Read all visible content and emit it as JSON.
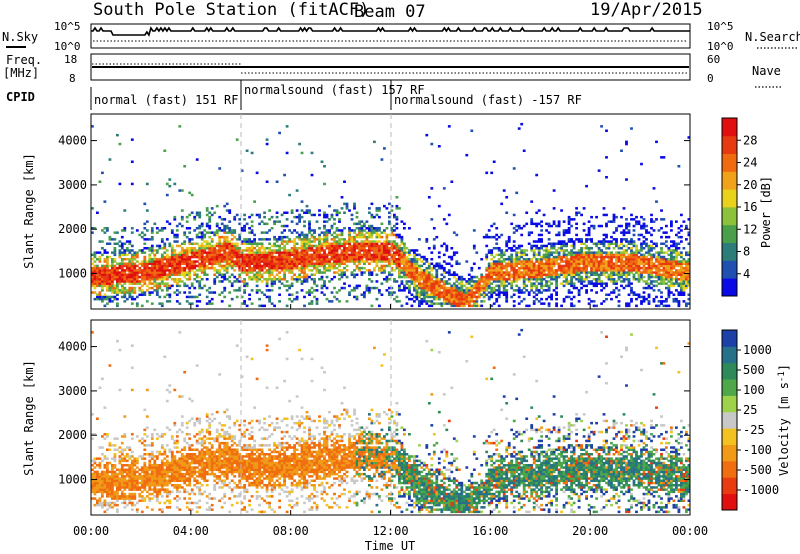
{
  "header": {
    "station": "South Pole Station (fitACF)",
    "beam": "Beam 07",
    "date": "19/Apr/2015"
  },
  "top_panels": {
    "nsky_label": "N.Sky",
    "nsky_left_ticks": [
      "10^5",
      "10^0"
    ],
    "nsearch_label": "N.Search",
    "nsearch_right_ticks": [
      "10^5",
      "10^0"
    ],
    "freq_label_line1": "Freq.",
    "freq_label_line2": "[MHz]",
    "freq_ticks": [
      "18",
      "8"
    ],
    "nave_label": "Nave",
    "nave_ticks": [
      "60",
      "0"
    ],
    "cpid_label": "CPID",
    "cpid_segments": [
      {
        "text": "normal (fast) 151 RF",
        "start_hour": 0,
        "end_hour": 6
      },
      {
        "text": "normalsound (fast) 157 RF",
        "start_hour": 6,
        "end_hour": 12
      },
      {
        "text": "normalsound (fast) -157 RF",
        "start_hour": 12,
        "end_hour": 24
      }
    ]
  },
  "x_axis": {
    "label": "Time UT",
    "ticks": [
      "00:00",
      "04:00",
      "08:00",
      "12:00",
      "16:00",
      "20:00",
      "00:00"
    ]
  },
  "power_colorbar": {
    "label": "Power [dB]",
    "ticks": [
      "28",
      "24",
      "20",
      "16",
      "12",
      "8",
      "4"
    ],
    "colors": [
      "#0a0ae6",
      "#1f4fb0",
      "#2c7d7a",
      "#4aa04a",
      "#8cc23a",
      "#e8d21c",
      "#f0a21a",
      "#f06a10",
      "#e83a10",
      "#e01010"
    ]
  },
  "velocity_colorbar": {
    "label": "Velocity [m s^-1]",
    "ticks": [
      "1000",
      "500",
      "100",
      "25",
      "-25",
      "-100",
      "-500",
      "-1000"
    ],
    "colors": [
      "#1d3fa8",
      "#27708a",
      "#2f8a5a",
      "#4ea84a",
      "#9ed24a",
      "#c8c8c8",
      "#f4c220",
      "#f09a18",
      "#f06e10",
      "#ea3a10",
      "#e01010"
    ]
  },
  "chart_data": [
    {
      "type": "heatmap",
      "title": "Power [dB]",
      "xlabel": "Time UT",
      "ylabel": "Slant Range [km]",
      "xlim": [
        0,
        24
      ],
      "ylim": [
        200,
        4600
      ],
      "yticks": [
        1000,
        2000,
        3000,
        4000
      ],
      "colorbar_ticks": [
        4,
        8,
        12,
        16,
        20,
        24,
        28
      ],
      "ground_band_center_km": [
        [
          0,
          900
        ],
        [
          2,
          1000
        ],
        [
          4,
          1250
        ],
        [
          5.5,
          1500
        ],
        [
          6,
          1200
        ],
        [
          8,
          1300
        ],
        [
          10,
          1450
        ],
        [
          12,
          1500
        ],
        [
          13,
          900
        ],
        [
          14,
          600
        ],
        [
          15,
          300
        ],
        [
          16,
          1000
        ],
        [
          18,
          1100
        ],
        [
          20,
          1250
        ],
        [
          22,
          1200
        ],
        [
          24,
          1000
        ]
      ]
    },
    {
      "type": "heatmap",
      "title": "Velocity [m s^-1]",
      "xlabel": "Time UT",
      "ylabel": "Slant Range [km]",
      "xlim": [
        0,
        24
      ],
      "ylim": [
        200,
        4600
      ],
      "yticks": [
        1000,
        2000,
        3000,
        4000
      ],
      "colorbar_ticks": [
        -1000,
        -500,
        -100,
        -25,
        25,
        100,
        500,
        1000
      ]
    }
  ]
}
